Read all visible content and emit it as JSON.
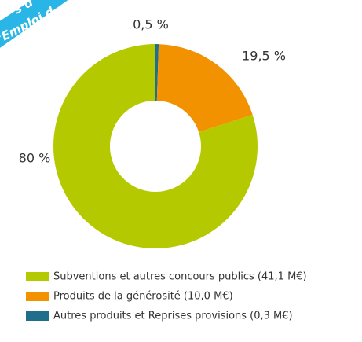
{
  "banner": [
    "s d",
    "e d'Emploi d"
  ],
  "chart_data": {
    "type": "donut",
    "categories": [
      "Subventions et autres concours publics (41,1 M€)",
      "Produits de la générosité (10,0 M€)",
      "Autres produits et Reprises provisions (0,3 M€)"
    ],
    "values": [
      80,
      19.5,
      0.5
    ],
    "value_labels": [
      "80 %",
      "19,5 %",
      "0,5 %"
    ],
    "colors": [
      "#b5c900",
      "#f39200",
      "#1f6e8c"
    ]
  }
}
